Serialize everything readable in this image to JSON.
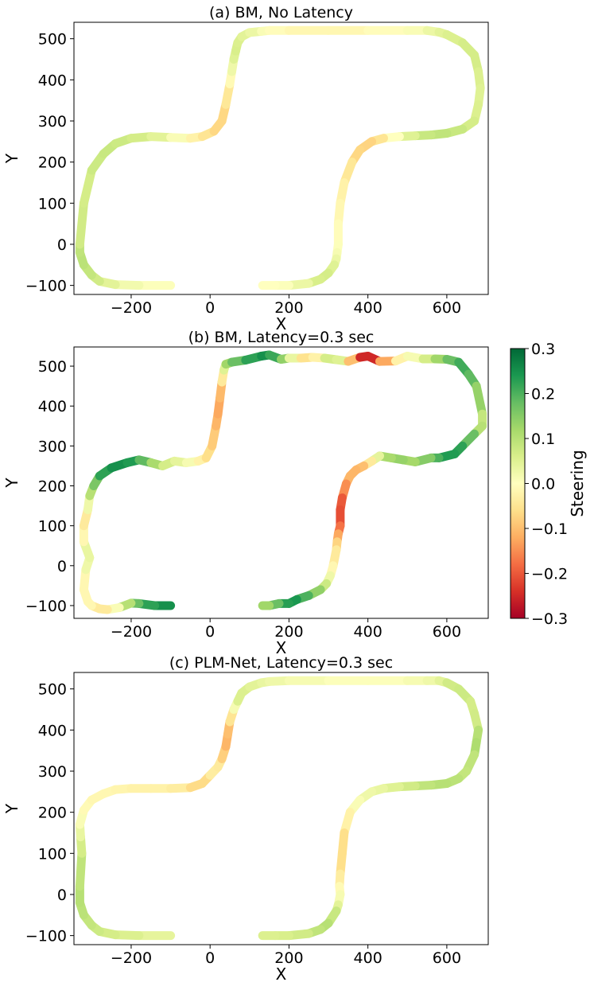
{
  "chart_data": [
    {
      "type": "line",
      "title": "(a) BM, No Latency",
      "xlabel": "X",
      "ylabel": "Y",
      "xlim": [
        -345,
        705
      ],
      "ylim": [
        -122,
        540
      ],
      "xticks": [
        -200,
        0,
        200,
        400,
        600
      ],
      "yticks": [
        -100,
        0,
        100,
        200,
        300,
        400,
        500
      ],
      "grid": false,
      "path": {
        "x": [
          -100,
          -180,
          -240,
          -280,
          -300,
          -320,
          -330,
          -330,
          -320,
          -300,
          -270,
          -240,
          -200,
          -150,
          -100,
          -50,
          -20,
          10,
          30,
          40,
          50,
          55,
          60,
          65,
          70,
          80,
          100,
          130,
          150,
          200,
          300,
          400,
          500,
          550,
          580,
          600,
          640,
          670,
          680,
          685,
          680,
          670,
          640,
          600,
          560,
          520,
          480,
          440,
          410,
          380,
          360,
          340,
          330,
          325,
          325,
          322,
          320,
          315,
          300,
          280,
          250,
          200,
          165,
          133
        ],
        "y": [
          -100,
          -100,
          -98,
          -90,
          -75,
          -50,
          -20,
          0,
          100,
          180,
          220,
          245,
          258,
          262,
          260,
          258,
          262,
          275,
          300,
          340,
          390,
          420,
          450,
          470,
          490,
          505,
          515,
          518,
          520,
          520,
          520,
          520,
          520,
          520,
          516,
          510,
          490,
          460,
          420,
          380,
          340,
          300,
          280,
          270,
          266,
          264,
          262,
          258,
          250,
          230,
          200,
          150,
          100,
          50,
          0,
          -20,
          -35,
          -50,
          -70,
          -85,
          -95,
          -100,
          -100,
          -100
        ],
        "steering": [
          0,
          0.01,
          0.03,
          0.06,
          0.08,
          0.09,
          0.1,
          0.08,
          0.06,
          0.07,
          0.08,
          0.08,
          0.07,
          0.06,
          0.03,
          -0.01,
          -0.04,
          -0.06,
          -0.08,
          -0.06,
          -0.03,
          0.01,
          0.04,
          0.06,
          0.06,
          0.05,
          0.04,
          0.02,
          0,
          -0.01,
          -0.02,
          -0.01,
          0,
          0.02,
          0.04,
          0.05,
          0.06,
          0.07,
          0.06,
          0.05,
          0.05,
          0.06,
          0.07,
          0.09,
          0.09,
          0.07,
          0.03,
          -0.03,
          -0.07,
          -0.08,
          -0.06,
          -0.03,
          -0.02,
          -0.01,
          0,
          0.01,
          0.02,
          0.04,
          0.06,
          0.07,
          0.05,
          0.01,
          0,
          0
        ]
      }
    },
    {
      "type": "line",
      "title": "(b) BM, Latency=0.3 sec",
      "xlabel": "X",
      "ylabel": "Y",
      "xlim": [
        -345,
        705
      ],
      "ylim": [
        -132,
        548
      ],
      "xticks": [
        -200,
        0,
        200,
        400,
        600
      ],
      "yticks": [
        -100,
        0,
        100,
        200,
        300,
        400,
        500
      ],
      "grid": false,
      "path": {
        "x": [
          -100,
          -140,
          -180,
          -200,
          -230,
          -260,
          -280,
          -300,
          -310,
          -320,
          -315,
          -305,
          -320,
          -320,
          -310,
          -305,
          -295,
          -280,
          -250,
          -210,
          -180,
          -150,
          -120,
          -90,
          -60,
          -30,
          -10,
          5,
          15,
          20,
          25,
          30,
          35,
          40,
          55,
          90,
          130,
          150,
          180,
          200,
          230,
          260,
          290,
          320,
          350,
          380,
          400,
          430,
          470,
          500,
          540,
          570,
          600,
          630,
          655,
          675,
          690,
          690,
          670,
          640,
          620,
          580,
          560,
          520,
          490,
          460,
          430,
          410,
          390,
          370,
          355,
          345,
          335,
          330,
          330,
          325,
          322,
          320,
          312,
          305,
          295,
          280,
          250,
          220,
          200,
          175,
          150,
          133
        ],
        "y": [
          -100,
          -100,
          -95,
          -94,
          -105,
          -110,
          -108,
          -100,
          -90,
          -60,
          -10,
          20,
          60,
          100,
          140,
          175,
          200,
          225,
          245,
          258,
          265,
          258,
          250,
          262,
          258,
          262,
          270,
          300,
          350,
          380,
          420,
          460,
          490,
          505,
          510,
          515,
          525,
          528,
          517,
          520,
          520,
          522,
          520,
          516,
          512,
          522,
          525,
          512,
          513,
          525,
          518,
          518,
          517,
          510,
          480,
          450,
          380,
          350,
          330,
          300,
          280,
          270,
          270,
          260,
          265,
          270,
          275,
          262,
          250,
          240,
          225,
          205,
          170,
          140,
          100,
          80,
          60,
          40,
          0,
          -25,
          -45,
          -60,
          -75,
          -85,
          -95,
          -95,
          -100,
          -100
        ],
        "steering": [
          0.25,
          0.25,
          0.2,
          0.15,
          0.05,
          -0.03,
          -0.05,
          -0.03,
          0,
          -0.03,
          0,
          0.05,
          0.02,
          -0.05,
          -0.03,
          0.08,
          0.12,
          0.2,
          0.25,
          0.25,
          0.22,
          0.15,
          0.08,
          0.05,
          0.03,
          0,
          -0.05,
          -0.07,
          -0.1,
          -0.12,
          -0.13,
          -0.08,
          0,
          0.1,
          0.15,
          0.2,
          0.25,
          0.25,
          0.18,
          0.1,
          -0.03,
          -0.08,
          0.03,
          0.1,
          0,
          -0.2,
          -0.3,
          -0.2,
          -0.05,
          0,
          0.03,
          0.1,
          0.15,
          0.2,
          0.22,
          0.15,
          0.12,
          0.05,
          0.15,
          0.2,
          0.25,
          0.22,
          0.18,
          0.12,
          0.12,
          0.15,
          0.08,
          0,
          -0.08,
          -0.12,
          -0.1,
          -0.12,
          -0.18,
          -0.22,
          -0.2,
          -0.15,
          -0.1,
          -0.05,
          -0.03,
          0,
          0.05,
          0.1,
          0.18,
          0.22,
          0.26,
          0.2,
          0.15,
          0.1
        ]
      }
    },
    {
      "type": "line",
      "title": "(c) PLM-Net, Latency=0.3 sec",
      "xlabel": "X",
      "ylabel": "Y",
      "xlim": [
        -345,
        705
      ],
      "ylim": [
        -122,
        540
      ],
      "xticks": [
        -200,
        0,
        200,
        400,
        600
      ],
      "yticks": [
        -100,
        0,
        100,
        200,
        300,
        400,
        500
      ],
      "grid": false,
      "path": {
        "x": [
          -100,
          -180,
          -240,
          -280,
          -300,
          -320,
          -330,
          -330,
          -325,
          -328,
          -330,
          -320,
          -300,
          -270,
          -240,
          -200,
          -150,
          -100,
          -50,
          -20,
          0,
          20,
          30,
          40,
          45,
          50,
          60,
          70,
          80,
          100,
          130,
          150,
          200,
          300,
          400,
          500,
          550,
          580,
          600,
          630,
          660,
          670,
          680,
          675,
          670,
          650,
          630,
          600,
          560,
          520,
          480,
          440,
          410,
          380,
          355,
          340,
          335,
          330,
          328,
          330,
          325,
          320,
          300,
          280,
          250,
          200,
          165,
          133
        ],
        "y": [
          -100,
          -100,
          -98,
          -90,
          -75,
          -50,
          -20,
          20,
          100,
          140,
          170,
          205,
          230,
          245,
          255,
          258,
          258,
          258,
          260,
          270,
          290,
          310,
          330,
          360,
          390,
          420,
          450,
          470,
          490,
          505,
          515,
          518,
          520,
          520,
          520,
          520,
          520,
          520,
          515,
          500,
          470,
          440,
          400,
          370,
          340,
          300,
          282,
          270,
          266,
          264,
          262,
          258,
          250,
          230,
          200,
          150,
          100,
          50,
          20,
          0,
          -25,
          -40,
          -70,
          -85,
          -95,
          -100,
          -100,
          -100
        ],
        "steering": [
          0.03,
          0.05,
          0.06,
          0.07,
          0.08,
          0.09,
          0.1,
          0.1,
          0.08,
          0.05,
          0.02,
          0,
          -0.02,
          -0.01,
          -0.02,
          -0.02,
          -0.03,
          -0.02,
          -0.05,
          -0.08,
          -0.05,
          -0.02,
          -0.06,
          -0.1,
          -0.12,
          -0.08,
          -0.02,
          0.05,
          0.06,
          0.05,
          0.04,
          0.03,
          0.02,
          0.01,
          0,
          0.01,
          0.02,
          0.03,
          0.06,
          0.08,
          0.07,
          0.06,
          0.08,
          0.12,
          0.1,
          0.08,
          0.09,
          0.1,
          0.1,
          0.08,
          0.06,
          0.04,
          0.03,
          0.02,
          0,
          -0.05,
          -0.07,
          -0.05,
          -0.02,
          0,
          0.03,
          0.06,
          0.1,
          0.1,
          0.08,
          0.06,
          0.06,
          0.05
        ]
      }
    }
  ],
  "colorbar": {
    "label": "Steering",
    "min": -0.3,
    "max": 0.3,
    "ticks": [
      "0.3",
      "0.2",
      "0.1",
      "0.0",
      "−0.1",
      "−0.2",
      "−0.3"
    ],
    "colormap": "RdYlGn",
    "colors": [
      "#a50026",
      "#d73027",
      "#f46d43",
      "#fdae61",
      "#fee08b",
      "#ffffbf",
      "#d9ef8b",
      "#a6d96a",
      "#66bd63",
      "#1a9850",
      "#006837"
    ]
  }
}
